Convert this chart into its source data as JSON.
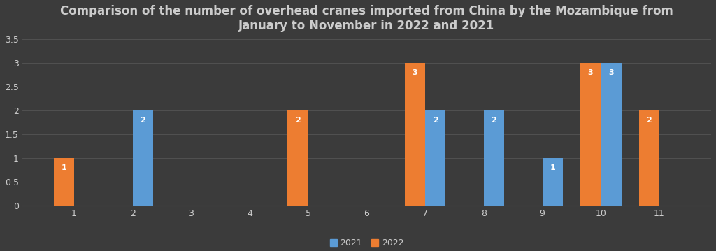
{
  "title": "Comparison of the number of overhead cranes imported from China by the Mozambique from\nJanuary to November in 2022 and 2021",
  "months": [
    1,
    2,
    3,
    4,
    5,
    6,
    7,
    8,
    9,
    10,
    11
  ],
  "data_2021": [
    0,
    2,
    0,
    0,
    0,
    0,
    2,
    2,
    1,
    3,
    0
  ],
  "data_2022": [
    1,
    0,
    0,
    0,
    2,
    0,
    3,
    0,
    0,
    3,
    2
  ],
  "color_2021": "#5B9BD5",
  "color_2022": "#ED7D31",
  "background_color": "#3B3B3B",
  "plot_bg_color": "#3B3B3B",
  "text_color": "#CCCCCC",
  "grid_color": "#555555",
  "ylim": [
    0,
    3.5
  ],
  "yticks": [
    0,
    0.5,
    1,
    1.5,
    2,
    2.5,
    3,
    3.5
  ],
  "legend_labels": [
    "2021",
    "2022"
  ],
  "bar_width": 0.35,
  "title_fontsize": 12,
  "tick_fontsize": 9,
  "label_fontsize": 8
}
